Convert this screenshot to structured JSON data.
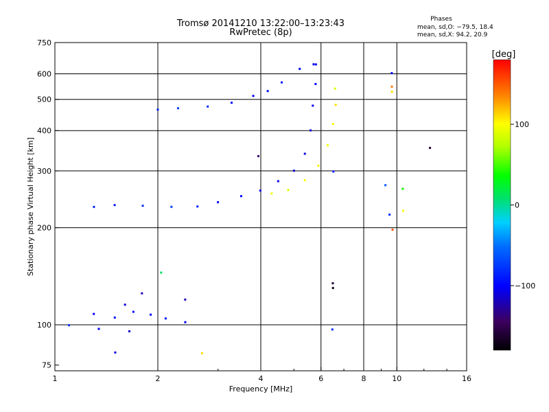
{
  "chart_data": {
    "type": "scatter",
    "title": "Tromsø 20141210 13:22:00–13:23:43",
    "subtitle": "RwPretec (8p)",
    "phase_box": {
      "heading": "Phases",
      "line1": "mean, sd,O: −79.5, 18.4",
      "line2": "mean, sd,X:  94.2, 20.9"
    },
    "xlabel": "Frequency [MHz]",
    "ylabel": "Stationary phase Virtual Height [km]",
    "x_scale": "log",
    "y_scale": "log",
    "xlim": [
      1,
      16
    ],
    "ylim": [
      72,
      750
    ],
    "x_ticks": [
      1,
      2,
      4,
      6,
      8,
      10,
      16
    ],
    "x_tick_labels": [
      "1",
      "2",
      "4",
      "6",
      "8",
      "10",
      "16"
    ],
    "x_grid": [
      2,
      4,
      6,
      8,
      10
    ],
    "y_ticks": [
      75,
      100,
      200,
      300,
      400,
      500,
      600,
      750
    ],
    "y_tick_labels": [
      "75",
      "100",
      "200",
      "300",
      "400",
      "500",
      "600",
      "750"
    ],
    "y_grid": [
      100,
      200,
      300,
      400,
      500,
      600
    ],
    "grid": true,
    "colorbar": {
      "label": "[deg]",
      "range": [
        -180,
        180
      ],
      "ticks": [
        100,
        0,
        -100
      ],
      "tick_labels": [
        "100",
        "0",
        "−100"
      ]
    },
    "series": [
      {
        "values": [
          {
            "x": 2.0,
            "y": 465,
            "phase": -85
          },
          {
            "x": 2.3,
            "y": 468,
            "phase": -75
          },
          {
            "x": 2.8,
            "y": 475,
            "phase": -80
          },
          {
            "x": 3.3,
            "y": 490,
            "phase": -95
          },
          {
            "x": 3.8,
            "y": 512,
            "phase": -100
          },
          {
            "x": 4.2,
            "y": 532,
            "phase": -95
          },
          {
            "x": 4.6,
            "y": 562,
            "phase": -90
          },
          {
            "x": 5.2,
            "y": 620,
            "phase": -100
          },
          {
            "x": 5.7,
            "y": 640,
            "phase": -105
          }
        ]
      },
      {
        "values": [
          {
            "x": 1.3,
            "y": 232,
            "phase": -85
          },
          {
            "x": 1.5,
            "y": 234,
            "phase": -90
          },
          {
            "x": 1.8,
            "y": 235,
            "phase": -80
          },
          {
            "x": 2.2,
            "y": 232,
            "phase": -75
          },
          {
            "x": 2.6,
            "y": 232,
            "phase": -85
          },
          {
            "x": 3.0,
            "y": 240,
            "phase": -95
          },
          {
            "x": 3.5,
            "y": 250,
            "phase": -100
          },
          {
            "x": 4.0,
            "y": 262,
            "phase": -105
          },
          {
            "x": 4.5,
            "y": 278,
            "phase": -105
          },
          {
            "x": 5.0,
            "y": 300,
            "phase": -110
          },
          {
            "x": 5.4,
            "y": 340,
            "phase": -110
          },
          {
            "x": 5.6,
            "y": 400,
            "phase": -110
          },
          {
            "x": 5.7,
            "y": 480,
            "phase": -105
          },
          {
            "x": 5.8,
            "y": 560,
            "phase": -100
          },
          {
            "x": 5.8,
            "y": 640,
            "phase": -100
          }
        ]
      },
      {
        "values": [
          {
            "x": 4.3,
            "y": 255,
            "phase": 95
          },
          {
            "x": 4.8,
            "y": 262,
            "phase": 90
          },
          {
            "x": 5.4,
            "y": 280,
            "phase": 100
          },
          {
            "x": 5.9,
            "y": 310,
            "phase": 105
          },
          {
            "x": 6.3,
            "y": 360,
            "phase": 95
          },
          {
            "x": 6.5,
            "y": 420,
            "phase": 100
          },
          {
            "x": 6.6,
            "y": 480,
            "phase": 110
          },
          {
            "x": 6.6,
            "y": 540,
            "phase": 90
          }
        ]
      },
      {
        "values": [
          {
            "x": 1.1,
            "y": 100,
            "phase": -80
          },
          {
            "x": 1.3,
            "y": 108,
            "phase": -100
          },
          {
            "x": 1.5,
            "y": 105,
            "phase": -90
          },
          {
            "x": 1.6,
            "y": 115,
            "phase": -110
          },
          {
            "x": 1.7,
            "y": 110,
            "phase": -95
          },
          {
            "x": 1.9,
            "y": 108,
            "phase": -100
          },
          {
            "x": 2.1,
            "y": 105,
            "phase": -90
          },
          {
            "x": 2.4,
            "y": 102,
            "phase": -100
          },
          {
            "x": 1.65,
            "y": 95,
            "phase": -115
          },
          {
            "x": 1.8,
            "y": 125,
            "phase": -120
          },
          {
            "x": 2.05,
            "y": 145,
            "phase": 10
          },
          {
            "x": 2.4,
            "y": 120,
            "phase": -120
          },
          {
            "x": 2.7,
            "y": 82,
            "phase": 110
          },
          {
            "x": 1.35,
            "y": 97,
            "phase": -100
          },
          {
            "x": 1.5,
            "y": 82,
            "phase": -110
          }
        ]
      },
      {
        "values": [
          {
            "x": 3.95,
            "y": 335,
            "phase": -140
          },
          {
            "x": 6.5,
            "y": 135,
            "phase": -160
          },
          {
            "x": 6.5,
            "y": 130,
            "phase": -170
          },
          {
            "x": 6.5,
            "y": 97,
            "phase": -80
          },
          {
            "x": 6.5,
            "y": 298,
            "phase": -90
          },
          {
            "x": 9.3,
            "y": 270,
            "phase": -60
          },
          {
            "x": 9.5,
            "y": 220,
            "phase": -80
          },
          {
            "x": 9.7,
            "y": 198,
            "phase": 150
          },
          {
            "x": 9.7,
            "y": 530,
            "phase": 110
          },
          {
            "x": 9.7,
            "y": 545,
            "phase": 140
          },
          {
            "x": 9.7,
            "y": 600,
            "phase": -100
          },
          {
            "x": 10.4,
            "y": 265,
            "phase": 40
          },
          {
            "x": 10.4,
            "y": 225,
            "phase": 100
          },
          {
            "x": 12.5,
            "y": 352,
            "phase": -160
          }
        ]
      }
    ]
  }
}
